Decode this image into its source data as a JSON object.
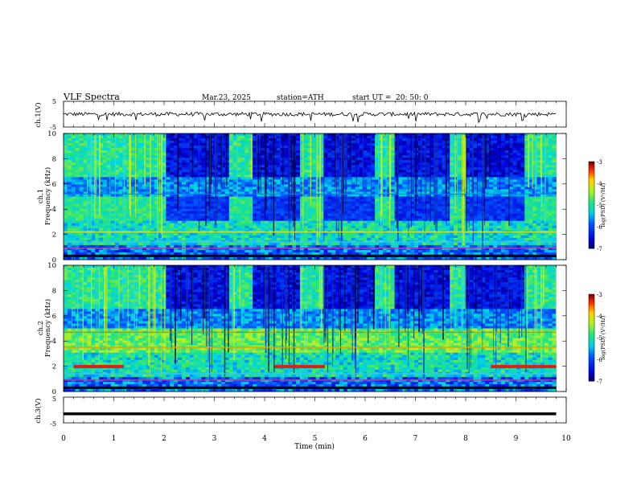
{
  "header": {
    "title": "VLF  Spectra",
    "date": "Mar.23, 2025",
    "station": "station=ATH",
    "start_label": "start  UT  =",
    "start_time": "20: 50: 0"
  },
  "chart_data": [
    {
      "type": "line",
      "id": "ch1-waveform",
      "ylabel": "ch.1(V)",
      "yticks": [
        "5",
        "-5"
      ],
      "ylim": [
        -5,
        5
      ],
      "mean_level_v": 0.0,
      "amplitude_v": 1.5
    },
    {
      "type": "heatmap",
      "id": "ch1-spectrogram",
      "ylabel": "ch.1\nFrequency  (kHz)",
      "yticks": [
        "0",
        "2",
        "4",
        "6",
        "8",
        "10"
      ],
      "ylim": [
        0,
        10
      ],
      "xlim": [
        0,
        10
      ],
      "colorbar": {
        "label": "log(PSD) (V²/Hz)",
        "ticks": [
          "-3",
          "-4",
          "-5",
          "-6",
          "-7"
        ],
        "range": [
          -7,
          -3
        ]
      },
      "burst_intervals_min": [
        [
          2.05,
          3.3
        ],
        [
          3.8,
          4.7
        ],
        [
          5.15,
          6.2
        ],
        [
          6.6,
          7.7
        ],
        [
          8.0,
          9.2
        ]
      ],
      "band_4khz_gaps_min": [
        [
          2.05,
          3.3
        ],
        [
          3.8,
          4.7
        ],
        [
          5.15,
          6.2
        ],
        [
          6.6,
          7.7
        ],
        [
          8.0,
          9.2
        ]
      ]
    },
    {
      "type": "heatmap",
      "id": "ch2-spectrogram",
      "ylabel": "ch.2\nFrequency  (kHz)",
      "yticks": [
        "0",
        "2",
        "4",
        "6",
        "8",
        "10"
      ],
      "ylim": [
        0,
        10
      ],
      "xlim": [
        0,
        10
      ],
      "colorbar": {
        "label": "log(PSD) (V²/Hz)",
        "ticks": [
          "-3",
          "-4",
          "-5",
          "-6",
          "-7"
        ],
        "range": [
          -7,
          -3
        ]
      },
      "burst_intervals_min": [
        [
          2.05,
          3.3
        ],
        [
          3.8,
          4.7
        ],
        [
          5.15,
          6.2
        ],
        [
          6.6,
          7.7
        ],
        [
          8.0,
          9.2
        ]
      ],
      "red_line_2khz_segments_min": [
        [
          0.2,
          1.2
        ],
        [
          4.2,
          5.2
        ],
        [
          8.5,
          9.8
        ]
      ]
    },
    {
      "type": "line",
      "id": "ch3-waveform",
      "ylabel": "ch.3(V)",
      "yticks": [
        "5",
        "-5"
      ],
      "ylim": [
        -5,
        5
      ],
      "level_v": -1.5
    }
  ],
  "x_axis": {
    "label": "Time  (min)",
    "ticks": [
      "0",
      "1",
      "2",
      "3",
      "4",
      "5",
      "6",
      "7",
      "8",
      "9",
      "10"
    ],
    "xlim": [
      0,
      10
    ],
    "data_end_min": 9.8
  }
}
